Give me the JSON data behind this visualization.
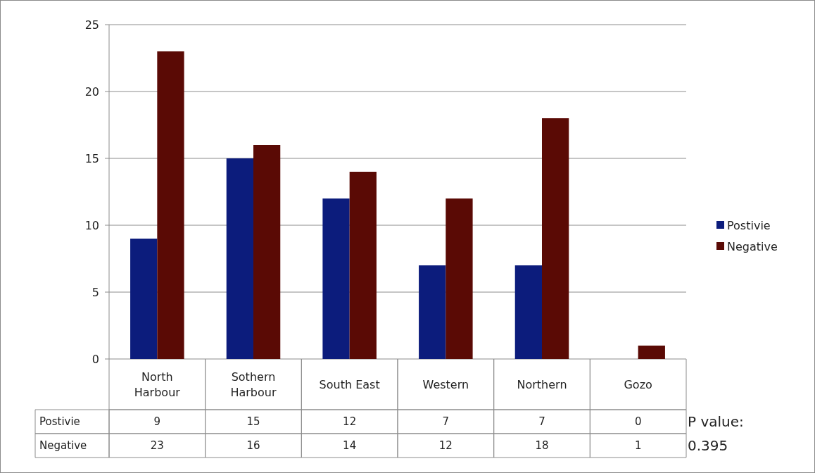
{
  "chart_data": {
    "type": "bar",
    "categories": [
      "North Harbour",
      "Sothern Harbour",
      "South East",
      "Western",
      "Northern",
      "Gozo"
    ],
    "series": [
      {
        "name": "Postivie",
        "color": "#0c1c7c",
        "values": [
          9,
          15,
          12,
          7,
          7,
          0
        ]
      },
      {
        "name": "Negative",
        "color": "#5a0a05",
        "values": [
          23,
          16,
          14,
          12,
          18,
          1
        ]
      }
    ],
    "ylim": [
      0,
      25
    ],
    "yticks": [
      0,
      5,
      10,
      15,
      20,
      25
    ],
    "grid": "y",
    "legend": "right",
    "data_labels": true,
    "annotations": [
      "P value:",
      "0.395"
    ]
  }
}
